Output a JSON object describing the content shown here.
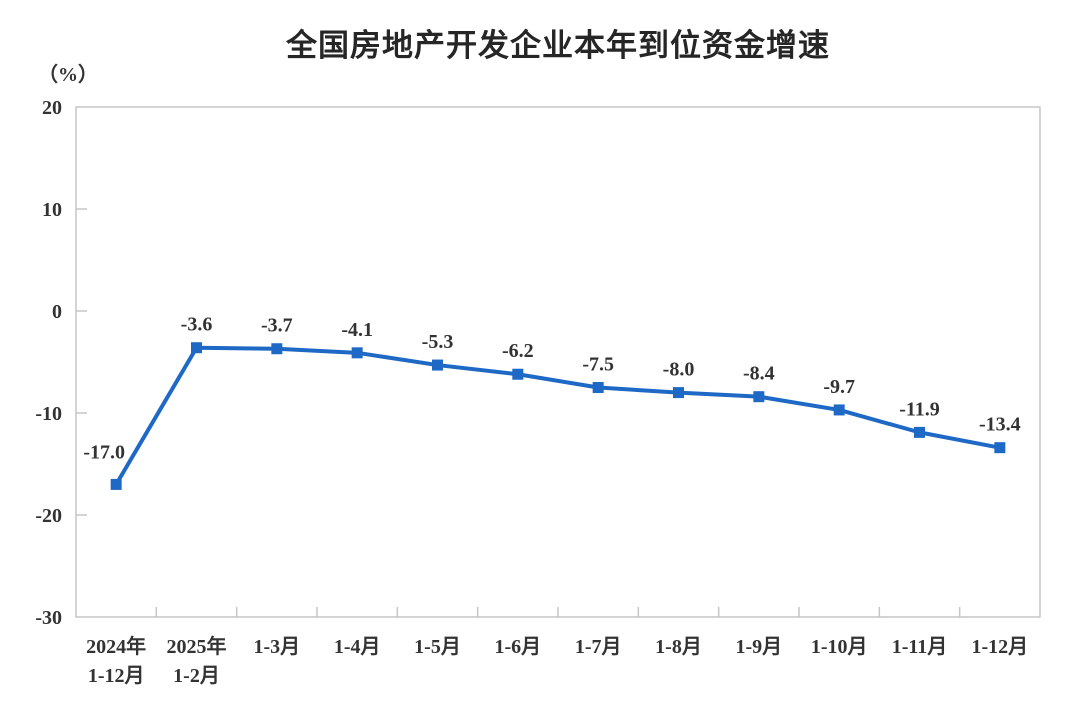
{
  "chart": {
    "title": "全国房地产开发企业本年到位资金增速",
    "unit_label": "（%）"
  },
  "chart_data": {
    "type": "line",
    "title": "全国房地产开发企业本年到位资金增速",
    "ylabel": "（%）",
    "xlabel": "",
    "categories": [
      "2024年\n1-12月",
      "2025年\n1-2月",
      "1-3月",
      "1-4月",
      "1-5月",
      "1-6月",
      "1-7月",
      "1-8月",
      "1-9月",
      "1-10月",
      "1-11月",
      "1-12月"
    ],
    "values": [
      -17.0,
      -3.6,
      -3.7,
      -4.1,
      -5.3,
      -6.2,
      -7.5,
      -8.0,
      -8.4,
      -9.7,
      -11.9,
      -13.4
    ],
    "data_labels": [
      "-17.0",
      "-3.6",
      "-3.7",
      "-4.1",
      "-5.3",
      "-6.2",
      "-7.5",
      "-8.0",
      "-8.4",
      "-9.7",
      "-11.9",
      "-13.4"
    ],
    "ylim": [
      -30,
      20
    ],
    "yticks": [
      20,
      10,
      0,
      -10,
      -20,
      -30
    ],
    "grid": false,
    "legend": "none",
    "marker": "square",
    "line_color": "#1E68C6",
    "label_color": "#333333",
    "axis_color": "#C6C6C6"
  }
}
